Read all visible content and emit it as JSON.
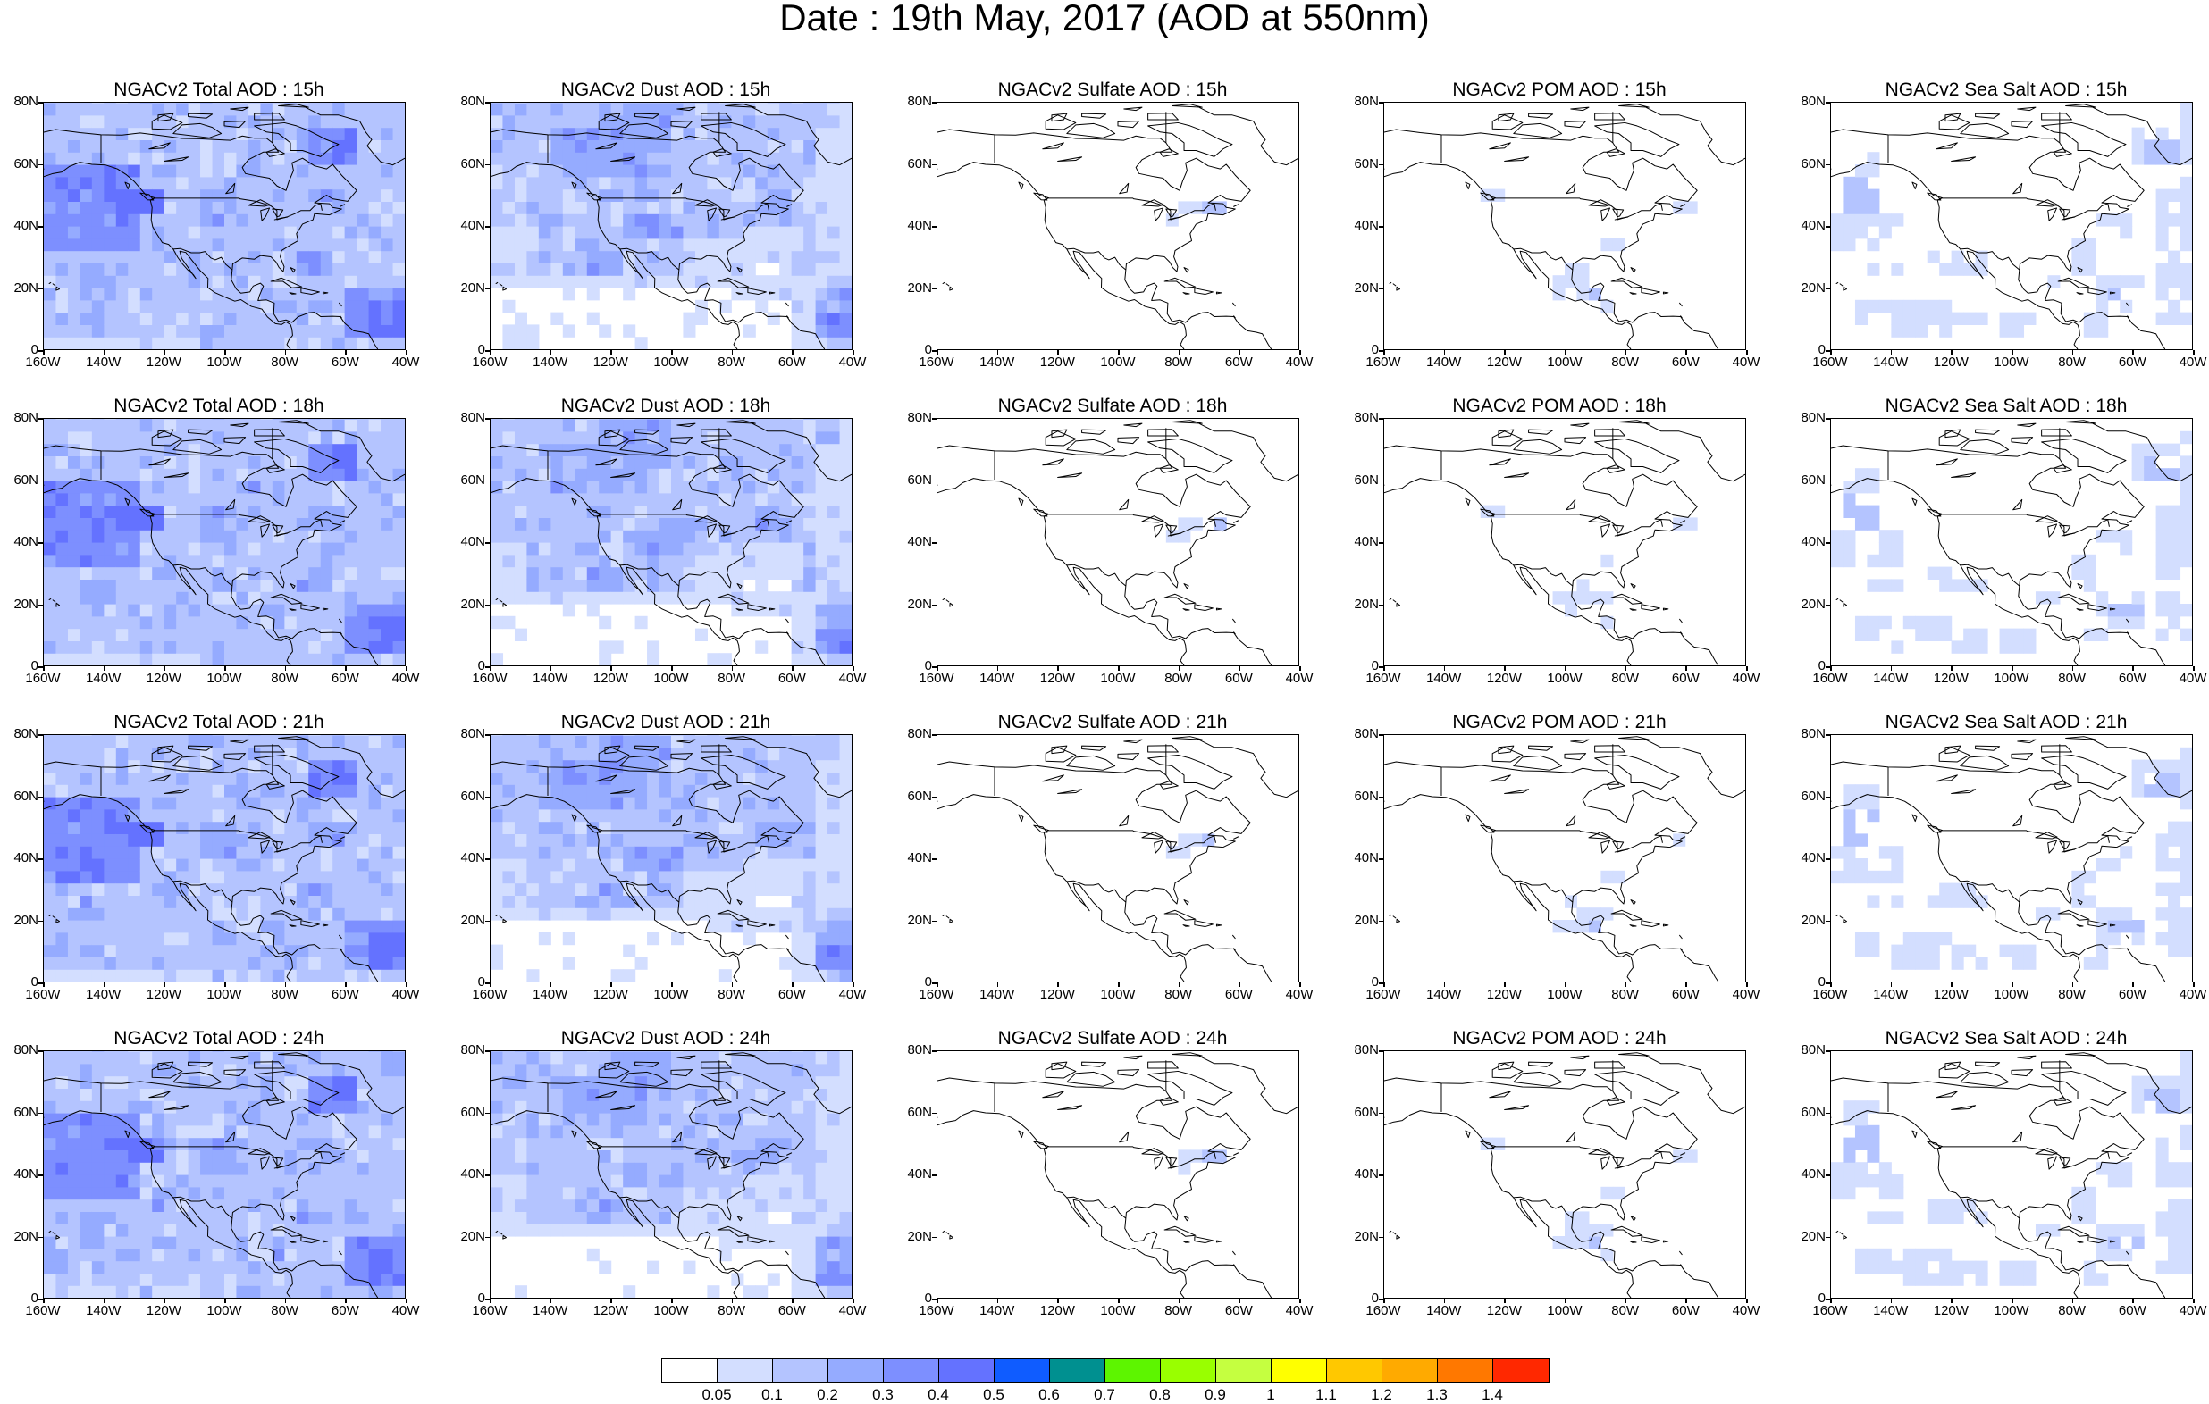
{
  "figure": {
    "title": "Date : 19th May, 2017 (AOD at 550nm)"
  },
  "map_axes": {
    "lon_ticks": [
      "160W",
      "140W",
      "120W",
      "100W",
      "80W",
      "60W",
      "40W"
    ],
    "lat_ticks": [
      "80N",
      "60N",
      "40N",
      "20N",
      "0"
    ]
  },
  "panels": [
    {
      "title": "NGACv2 Total AOD : 15h",
      "species": "total",
      "hour": "15h",
      "intensity": 1.0
    },
    {
      "title": "NGACv2 Dust AOD : 15h",
      "species": "dust",
      "hour": "15h",
      "intensity": 1.0
    },
    {
      "title": "NGACv2 Sulfate AOD : 15h",
      "species": "sulfate",
      "hour": "15h",
      "intensity": 1.0
    },
    {
      "title": "NGACv2 POM AOD : 15h",
      "species": "pom",
      "hour": "15h",
      "intensity": 0.9
    },
    {
      "title": "NGACv2 Sea Salt AOD : 15h",
      "species": "seasalt",
      "hour": "15h",
      "intensity": 1.0
    },
    {
      "title": "NGACv2 Total AOD : 18h",
      "species": "total",
      "hour": "18h",
      "intensity": 1.0
    },
    {
      "title": "NGACv2 Dust AOD : 18h",
      "species": "dust",
      "hour": "18h",
      "intensity": 1.0
    },
    {
      "title": "NGACv2 Sulfate AOD : 18h",
      "species": "sulfate",
      "hour": "18h",
      "intensity": 1.0
    },
    {
      "title": "NGACv2 POM AOD : 18h",
      "species": "pom",
      "hour": "18h",
      "intensity": 1.0
    },
    {
      "title": "NGACv2 Sea Salt AOD : 18h",
      "species": "seasalt",
      "hour": "18h",
      "intensity": 1.0
    },
    {
      "title": "NGACv2 Total AOD : 21h",
      "species": "total",
      "hour": "21h",
      "intensity": 1.0
    },
    {
      "title": "NGACv2 Dust AOD : 21h",
      "species": "dust",
      "hour": "21h",
      "intensity": 1.0
    },
    {
      "title": "NGACv2 Sulfate AOD : 21h",
      "species": "sulfate",
      "hour": "21h",
      "intensity": 1.0
    },
    {
      "title": "NGACv2 POM AOD : 21h",
      "species": "pom",
      "hour": "21h",
      "intensity": 1.15
    },
    {
      "title": "NGACv2 Sea Salt AOD : 21h",
      "species": "seasalt",
      "hour": "21h",
      "intensity": 1.0
    },
    {
      "title": "NGACv2 Total AOD : 24h",
      "species": "total",
      "hour": "24h",
      "intensity": 1.0
    },
    {
      "title": "NGACv2 Dust AOD : 24h",
      "species": "dust",
      "hour": "24h",
      "intensity": 1.0
    },
    {
      "title": "NGACv2 Sulfate AOD : 24h",
      "species": "sulfate",
      "hour": "24h",
      "intensity": 1.0
    },
    {
      "title": "NGACv2 POM AOD : 24h",
      "species": "pom",
      "hour": "24h",
      "intensity": 1.25
    },
    {
      "title": "NGACv2 Sea Salt  AOD : 24h",
      "species": "seasalt",
      "hour": "24h",
      "intensity": 1.0
    }
  ],
  "colorbar": {
    "colors": [
      "#ffffff",
      "#d3deff",
      "#b4c4ff",
      "#95abff",
      "#7d8fff",
      "#6472ff",
      "#0f5cff",
      "#009090",
      "#5df500",
      "#99ff00",
      "#c5ff40",
      "#ffff00",
      "#ffc800",
      "#ffaa00",
      "#ff7800",
      "#ff2800"
    ],
    "labels": [
      "0.05",
      "0.1",
      "0.2",
      "0.3",
      "0.4",
      "0.5",
      "0.6",
      "0.7",
      "0.8",
      "0.9",
      "1",
      "1.1",
      "1.2",
      "1.3",
      "1.4"
    ]
  },
  "colors": {
    "aod_level_1": "#d3deff",
    "aod_level_2": "#b4c4ff",
    "aod_level_3": "#95abff",
    "aod_level_4": "#7d8fff",
    "aod_level_5": "#6472ff",
    "coastline": "#000000"
  }
}
